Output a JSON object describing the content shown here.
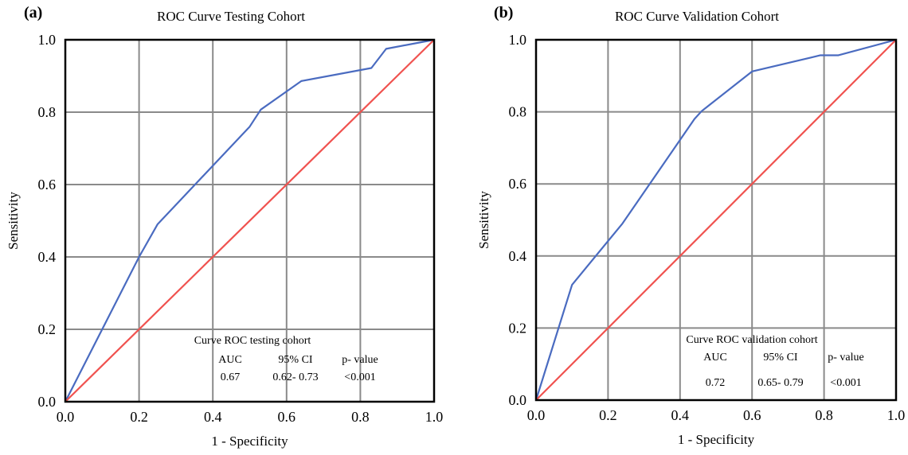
{
  "chart_data": [
    {
      "panel_label": "(a)",
      "type": "line",
      "title": "ROC Curve Testing Cohort",
      "xlabel": "1 - Specificity",
      "ylabel": "Sensitivity",
      "xlim": [
        0,
        1
      ],
      "ylim": [
        0,
        1
      ],
      "xticks": [
        "0.0",
        "0.2",
        "0.4",
        "0.6",
        "0.8",
        "1.0"
      ],
      "yticks": [
        "0.0",
        "0.2",
        "0.4",
        "0.6",
        "0.8",
        "1.0"
      ],
      "grid": true,
      "series": [
        {
          "color": "#4a6bc0",
          "x": [
            0.0,
            0.2,
            0.25,
            0.5,
            0.53,
            0.64,
            0.83,
            0.87,
            1.0
          ],
          "y": [
            0.0,
            0.4,
            0.49,
            0.76,
            0.807,
            0.886,
            0.922,
            0.975,
            1.0
          ]
        },
        {
          "color": "#f0524f",
          "x": [
            0.0,
            1.0
          ],
          "y": [
            0.0,
            1.0
          ]
        }
      ],
      "table": {
        "title": "Curve ROC testing cohort",
        "headers": [
          "AUC",
          "95% CI",
          "p- value"
        ],
        "values": [
          "0.67",
          "0.62- 0.73",
          "<0.001"
        ]
      }
    },
    {
      "panel_label": "(b)",
      "type": "line",
      "title": "ROC Curve Validation Cohort",
      "xlabel": "1 - Specificity",
      "ylabel": "Sensitivity",
      "xlim": [
        0,
        1
      ],
      "ylim": [
        0,
        1
      ],
      "xticks": [
        "0.0",
        "0.2",
        "0.4",
        "0.6",
        "0.8",
        "1.0"
      ],
      "yticks": [
        "0.0",
        "0.2",
        "0.4",
        "0.6",
        "0.8",
        "1.0"
      ],
      "grid": true,
      "series": [
        {
          "color": "#4a6bc0",
          "x": [
            0.0,
            0.1,
            0.24,
            0.44,
            0.46,
            0.6,
            0.79,
            0.84,
            1.0
          ],
          "y": [
            0.0,
            0.32,
            0.49,
            0.78,
            0.802,
            0.912,
            0.957,
            0.957,
            1.0
          ]
        },
        {
          "color": "#f0524f",
          "x": [
            0.0,
            1.0
          ],
          "y": [
            0.0,
            1.0
          ]
        }
      ],
      "table": {
        "title": "Curve ROC validation cohort",
        "headers": [
          "AUC",
          "95% CI",
          "p- value"
        ],
        "values": [
          "0.72",
          "0.65- 0.79",
          "<0.001"
        ]
      }
    }
  ]
}
